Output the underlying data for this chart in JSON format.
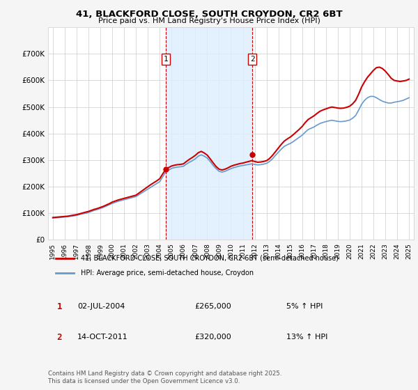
{
  "title": "41, BLACKFORD CLOSE, SOUTH CROYDON, CR2 6BT",
  "subtitle": "Price paid vs. HM Land Registry's House Price Index (HPI)",
  "bg_color": "#f5f5f5",
  "chart_bg_color": "#ffffff",
  "hpi_color": "#6699cc",
  "price_color": "#cc0000",
  "vline_color": "#cc0000",
  "shade_color": "#ddeeff",
  "grid_color": "#cccccc",
  "sale1_x": 2004.5,
  "sale1_y": 265000,
  "sale2_x": 2011.79,
  "sale2_y": 320000,
  "ylim": [
    0,
    800000
  ],
  "yticks": [
    0,
    100000,
    200000,
    300000,
    400000,
    500000,
    600000,
    700000
  ],
  "ytick_labels": [
    "£0",
    "£100K",
    "£200K",
    "£300K",
    "£400K",
    "£500K",
    "£600K",
    "£700K"
  ],
  "legend1": "41, BLACKFORD CLOSE, SOUTH CROYDON, CR2 6BT (semi-detached house)",
  "legend2": "HPI: Average price, semi-detached house, Croydon",
  "annotation1": [
    "1",
    "02-JUL-2004",
    "£265,000",
    "5% ↑ HPI"
  ],
  "annotation2": [
    "2",
    "14-OCT-2011",
    "£320,000",
    "13% ↑ HPI"
  ],
  "footnote": "Contains HM Land Registry data © Crown copyright and database right 2025.\nThis data is licensed under the Open Government Licence v3.0.",
  "hpi_x": [
    1995.0,
    1995.25,
    1995.5,
    1995.75,
    1996.0,
    1996.25,
    1996.5,
    1996.75,
    1997.0,
    1997.25,
    1997.5,
    1997.75,
    1998.0,
    1998.25,
    1998.5,
    1998.75,
    1999.0,
    1999.25,
    1999.5,
    1999.75,
    2000.0,
    2000.25,
    2000.5,
    2000.75,
    2001.0,
    2001.25,
    2001.5,
    2001.75,
    2002.0,
    2002.25,
    2002.5,
    2002.75,
    2003.0,
    2003.25,
    2003.5,
    2003.75,
    2004.0,
    2004.25,
    2004.5,
    2004.75,
    2005.0,
    2005.25,
    2005.5,
    2005.75,
    2006.0,
    2006.25,
    2006.5,
    2006.75,
    2007.0,
    2007.25,
    2007.5,
    2007.75,
    2008.0,
    2008.25,
    2008.5,
    2008.75,
    2009.0,
    2009.25,
    2009.5,
    2009.75,
    2010.0,
    2010.25,
    2010.5,
    2010.75,
    2011.0,
    2011.25,
    2011.5,
    2011.75,
    2012.0,
    2012.25,
    2012.5,
    2012.75,
    2013.0,
    2013.25,
    2013.5,
    2013.75,
    2014.0,
    2014.25,
    2014.5,
    2014.75,
    2015.0,
    2015.25,
    2015.5,
    2015.75,
    2016.0,
    2016.25,
    2016.5,
    2016.75,
    2017.0,
    2017.25,
    2017.5,
    2017.75,
    2018.0,
    2018.25,
    2018.5,
    2018.75,
    2019.0,
    2019.25,
    2019.5,
    2019.75,
    2020.0,
    2020.25,
    2020.5,
    2020.75,
    2021.0,
    2021.25,
    2021.5,
    2021.75,
    2022.0,
    2022.25,
    2022.5,
    2022.75,
    2023.0,
    2023.25,
    2023.5,
    2023.75,
    2024.0,
    2024.25,
    2024.5,
    2024.75,
    2025.0
  ],
  "hpi_y": [
    82000,
    83000,
    84000,
    85000,
    86000,
    87000,
    89000,
    90000,
    92000,
    95000,
    98000,
    100000,
    103000,
    107000,
    111000,
    114000,
    118000,
    122000,
    127000,
    132000,
    137000,
    141000,
    145000,
    148000,
    151000,
    154000,
    157000,
    160000,
    163000,
    170000,
    177000,
    184000,
    191000,
    198000,
    205000,
    212000,
    219000,
    237000,
    255000,
    262000,
    269000,
    272000,
    274000,
    275000,
    277000,
    285000,
    292000,
    298000,
    305000,
    315000,
    320000,
    315000,
    308000,
    295000,
    280000,
    268000,
    258000,
    255000,
    258000,
    263000,
    268000,
    272000,
    275000,
    278000,
    280000,
    282000,
    284000,
    286000,
    284000,
    282000,
    283000,
    285000,
    288000,
    295000,
    305000,
    318000,
    330000,
    342000,
    352000,
    358000,
    363000,
    370000,
    378000,
    386000,
    394000,
    405000,
    415000,
    420000,
    425000,
    432000,
    438000,
    442000,
    445000,
    448000,
    450000,
    448000,
    446000,
    445000,
    446000,
    448000,
    451000,
    458000,
    468000,
    488000,
    510000,
    525000,
    535000,
    540000,
    540000,
    535000,
    528000,
    522000,
    518000,
    515000,
    515000,
    518000,
    520000,
    522000,
    525000,
    530000,
    535000
  ],
  "price_x": [
    1995.0,
    1995.25,
    1995.5,
    1995.75,
    1996.0,
    1996.25,
    1996.5,
    1996.75,
    1997.0,
    1997.25,
    1997.5,
    1997.75,
    1998.0,
    1998.25,
    1998.5,
    1998.75,
    1999.0,
    1999.25,
    1999.5,
    1999.75,
    2000.0,
    2000.25,
    2000.5,
    2000.75,
    2001.0,
    2001.25,
    2001.5,
    2001.75,
    2002.0,
    2002.25,
    2002.5,
    2002.75,
    2003.0,
    2003.25,
    2003.5,
    2003.75,
    2004.0,
    2004.25,
    2004.5,
    2004.75,
    2005.0,
    2005.25,
    2005.5,
    2005.75,
    2006.0,
    2006.25,
    2006.5,
    2006.75,
    2007.0,
    2007.25,
    2007.5,
    2007.75,
    2008.0,
    2008.25,
    2008.5,
    2008.75,
    2009.0,
    2009.25,
    2009.5,
    2009.75,
    2010.0,
    2010.25,
    2010.5,
    2010.75,
    2011.0,
    2011.25,
    2011.5,
    2011.75,
    2012.0,
    2012.25,
    2012.5,
    2012.75,
    2013.0,
    2013.25,
    2013.5,
    2013.75,
    2014.0,
    2014.25,
    2014.5,
    2014.75,
    2015.0,
    2015.25,
    2015.5,
    2015.75,
    2016.0,
    2016.25,
    2016.5,
    2016.75,
    2017.0,
    2017.25,
    2017.5,
    2017.75,
    2018.0,
    2018.25,
    2018.5,
    2018.75,
    2019.0,
    2019.25,
    2019.5,
    2019.75,
    2020.0,
    2020.25,
    2020.5,
    2020.75,
    2021.0,
    2021.25,
    2021.5,
    2021.75,
    2022.0,
    2022.25,
    2022.5,
    2022.75,
    2023.0,
    2023.25,
    2023.5,
    2023.75,
    2024.0,
    2024.25,
    2024.5,
    2024.75,
    2025.0
  ],
  "price_y": [
    84000,
    85000,
    86000,
    87000,
    88000,
    89000,
    91000,
    93000,
    95000,
    98000,
    101000,
    104000,
    107000,
    111000,
    115000,
    118000,
    122000,
    126000,
    131000,
    136000,
    142000,
    146000,
    150000,
    153000,
    156000,
    159000,
    162000,
    165000,
    168000,
    176000,
    184000,
    192000,
    200000,
    208000,
    215000,
    222000,
    230000,
    248000,
    265000,
    272000,
    278000,
    281000,
    283000,
    284000,
    286000,
    295000,
    303000,
    310000,
    318000,
    328000,
    333000,
    327000,
    319000,
    305000,
    290000,
    276000,
    266000,
    263000,
    266000,
    271000,
    277000,
    281000,
    284000,
    287000,
    289000,
    292000,
    295000,
    298000,
    295000,
    292000,
    293000,
    295000,
    298000,
    306000,
    318000,
    332000,
    346000,
    360000,
    372000,
    380000,
    387000,
    396000,
    406000,
    416000,
    427000,
    441000,
    453000,
    460000,
    467000,
    476000,
    484000,
    489000,
    493000,
    497000,
    500000,
    498000,
    496000,
    495000,
    496000,
    499000,
    503000,
    512000,
    525000,
    548000,
    575000,
    595000,
    612000,
    625000,
    638000,
    648000,
    650000,
    645000,
    635000,
    622000,
    608000,
    600000,
    598000,
    596000,
    598000,
    600000,
    605000
  ],
  "xtick_years": [
    1995,
    1996,
    1997,
    1998,
    1999,
    2000,
    2001,
    2002,
    2003,
    2004,
    2005,
    2006,
    2007,
    2008,
    2009,
    2010,
    2011,
    2012,
    2013,
    2014,
    2015,
    2016,
    2017,
    2018,
    2019,
    2020,
    2021,
    2022,
    2023,
    2024,
    2025
  ]
}
